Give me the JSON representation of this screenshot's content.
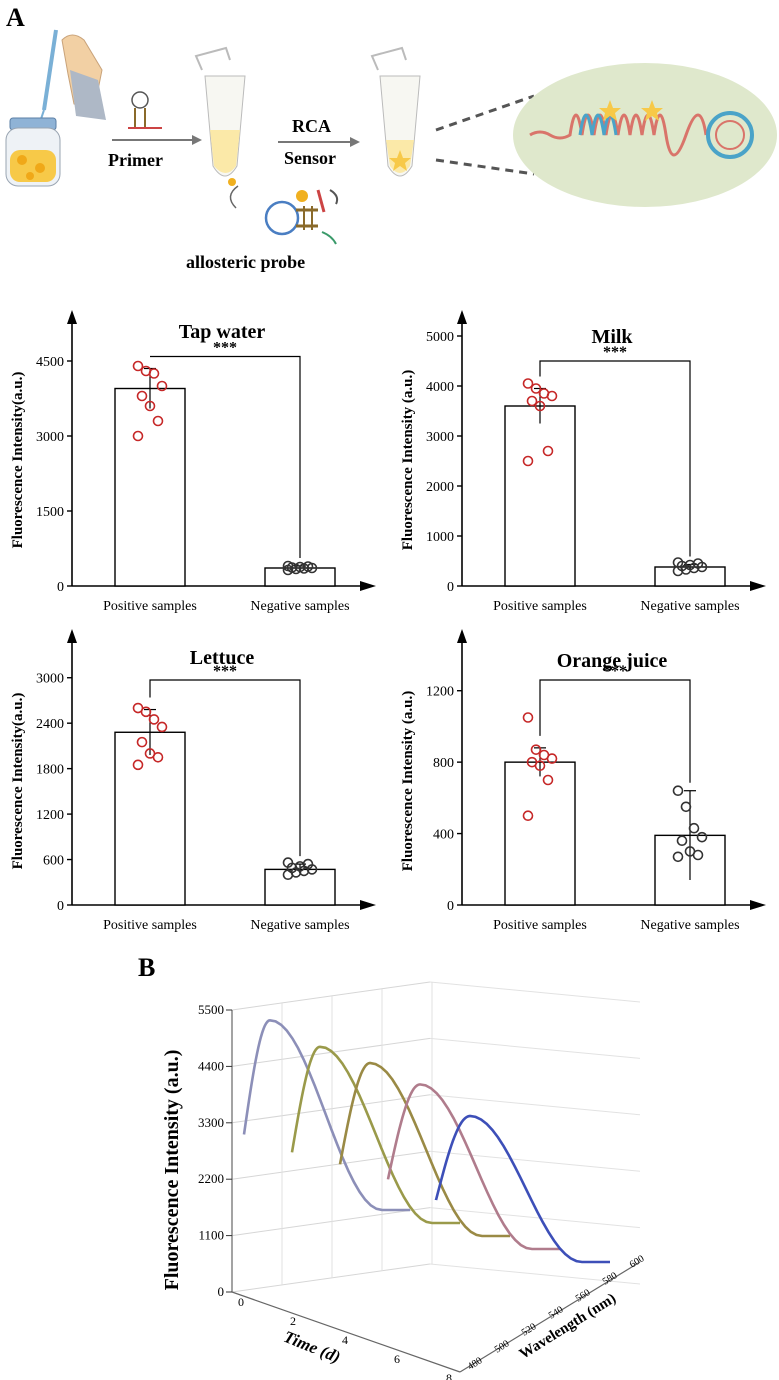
{
  "panel_a": {
    "letter": "A",
    "labels": {
      "primer": "Primer",
      "rca": "RCA",
      "sensor": "Sensor",
      "probe": "allosteric probe"
    }
  },
  "panel_b": {
    "letter": "B"
  },
  "colors": {
    "bar_edge": "#000000",
    "positive_marker": "#c62828",
    "negative_marker": "#333333",
    "ellipse": "#dfe8cc",
    "jar_fill": "#f7c948"
  },
  "chart_data": [
    {
      "type": "bar",
      "title": "Tap water",
      "ylabel": "Fluorescence Intensity(a.u.)",
      "xlabel": "",
      "categories": [
        "Positive samples",
        "Negative samples"
      ],
      "values": [
        3950,
        360
      ],
      "errors": [
        400,
        40
      ],
      "ylim": [
        0,
        5000
      ],
      "yticks": [
        0,
        1500,
        3000,
        4500
      ],
      "ytick_labels": [
        "0",
        "1500",
        "3000",
        "4500"
      ],
      "significance": "***",
      "points": [
        [
          4400,
          4300,
          4250,
          4000,
          3800,
          3600,
          3300,
          3000
        ],
        [
          320,
          340,
          350,
          360,
          370,
          380,
          390,
          400
        ]
      ]
    },
    {
      "type": "bar",
      "title": "Milk",
      "ylabel": "Fluorescence Intensity (a.u.)",
      "xlabel": "",
      "categories": [
        "Positive samples",
        "Negative samples"
      ],
      "values": [
        3600,
        380
      ],
      "errors": [
        350,
        50
      ],
      "ylim": [
        0,
        5000
      ],
      "yticks": [
        0,
        1000,
        2000,
        3000,
        4000,
        5000
      ],
      "ytick_labels": [
        "0",
        "1000",
        "2000",
        "3000",
        "4000",
        "5000"
      ],
      "significance": "***",
      "points": [
        [
          4050,
          3950,
          3850,
          3800,
          3700,
          3600,
          2700,
          2500
        ],
        [
          300,
          330,
          360,
          380,
          400,
          420,
          450,
          470
        ]
      ]
    },
    {
      "type": "bar",
      "title": "Lettuce",
      "ylabel": "Fluorescence Intensity(a.u.)",
      "xlabel": "",
      "categories": [
        "Positive samples",
        "Negative samples"
      ],
      "values": [
        2280,
        470
      ],
      "errors": [
        300,
        70
      ],
      "ylim": [
        0,
        3300
      ],
      "yticks": [
        0,
        600,
        1200,
        1800,
        2400,
        3000
      ],
      "ytick_labels": [
        "0",
        "600",
        "1200",
        "1800",
        "2400",
        "3000"
      ],
      "significance": "***",
      "points": [
        [
          2600,
          2550,
          2450,
          2350,
          2150,
          2000,
          1950,
          1850
        ],
        [
          400,
          430,
          450,
          470,
          490,
          510,
          540,
          560
        ]
      ]
    },
    {
      "type": "bar",
      "title": "Orange juice",
      "ylabel": "Fluorescence Intensity (a.u.)",
      "xlabel": "",
      "categories": [
        "Positive samples",
        "Negative samples"
      ],
      "values": [
        800,
        390
      ],
      "errors": [
        80,
        250
      ],
      "ylim": [
        0,
        1400
      ],
      "yticks": [
        0,
        400,
        800,
        1200
      ],
      "ytick_labels": [
        "0",
        "400",
        "800",
        "1200"
      ],
      "significance": "***",
      "points": [
        [
          1050,
          870,
          840,
          820,
          800,
          780,
          700,
          500
        ],
        [
          640,
          550,
          430,
          380,
          360,
          300,
          280,
          270
        ]
      ]
    },
    {
      "type": "line",
      "title": "",
      "ylabel": "Fluorescence Intensity (a.u.)",
      "xlabel": "Time (d)",
      "zlabel": "Wavelength (nm)",
      "zlim": [
        0,
        5500
      ],
      "zticks": [
        0,
        1100,
        2200,
        3300,
        4400,
        5500
      ],
      "ztick_labels": [
        "0",
        "1100",
        "2200",
        "3300",
        "4400",
        "5500"
      ],
      "time_ticks": [
        "0",
        "2",
        "4",
        "6",
        "8"
      ],
      "wavelength_ticks": [
        "480",
        "500",
        "520",
        "540",
        "560",
        "580",
        "600"
      ],
      "series": [
        {
          "name": "day 0",
          "peak": 5300,
          "color": "#8c8fb8"
        },
        {
          "name": "day 2",
          "peak": 4900,
          "color": "#9a9a4a"
        },
        {
          "name": "day 4",
          "peak": 4700,
          "color": "#9a8a45"
        },
        {
          "name": "day 6",
          "peak": 4400,
          "color": "#b07c8c"
        },
        {
          "name": "day 8",
          "peak": 3900,
          "color": "#3d4fb8"
        }
      ]
    }
  ]
}
